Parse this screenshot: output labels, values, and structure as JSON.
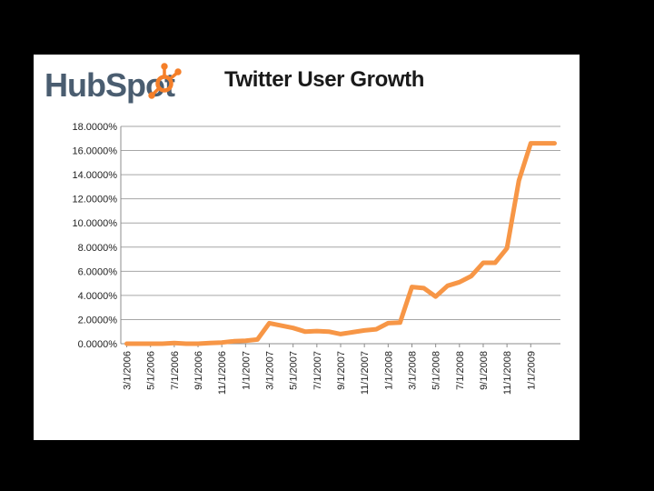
{
  "brand": {
    "logo_text": "HubSpot",
    "text_color": "#4a5d70",
    "accent_color": "#f57f29"
  },
  "chart_data": {
    "type": "line",
    "title": "Twitter User Growth",
    "xlabel": "",
    "ylabel": "",
    "ylim": [
      0,
      18
    ],
    "y_ticks": [
      0,
      2,
      4,
      6,
      8,
      10,
      12,
      14,
      16,
      18
    ],
    "y_tick_labels": [
      "0.0000%",
      "2.0000%",
      "4.0000%",
      "6.0000%",
      "8.0000%",
      "10.0000%",
      "12.0000%",
      "14.0000%",
      "16.0000%",
      "18.0000%"
    ],
    "x_tick_labels": [
      "3/1/2006",
      "5/1/2006",
      "7/1/2006",
      "9/1/2006",
      "11/1/2006",
      "1/1/2007",
      "3/1/2007",
      "5/1/2007",
      "7/1/2007",
      "9/1/2007",
      "11/1/2007",
      "1/1/2008",
      "3/1/2008",
      "5/1/2008",
      "7/1/2008",
      "9/1/2008",
      "11/1/2008",
      "1/1/2009"
    ],
    "grid": true,
    "line_color": "#f79646",
    "series": [
      {
        "x": [
          "3/1/2006",
          "4/1/2006",
          "5/1/2006",
          "6/1/2006",
          "7/1/2006",
          "8/1/2006",
          "9/1/2006",
          "10/1/2006",
          "11/1/2006",
          "12/1/2006",
          "1/1/2007",
          "2/1/2007",
          "3/1/2007",
          "4/1/2007",
          "5/1/2007",
          "6/1/2007",
          "7/1/2007",
          "8/1/2007",
          "9/1/2007",
          "10/1/2007",
          "11/1/2007",
          "12/1/2007",
          "1/1/2008",
          "2/1/2008",
          "3/1/2008",
          "4/1/2008",
          "5/1/2008",
          "6/1/2008",
          "7/1/2008",
          "8/1/2008",
          "9/1/2008",
          "10/1/2008",
          "11/1/2008",
          "12/1/2008",
          "1/1/2009",
          "2/1/2009",
          "3/1/2009"
        ],
        "values": [
          0.0,
          0.0,
          0.0,
          0.0,
          0.05,
          0.0,
          0.0,
          0.05,
          0.1,
          0.2,
          0.25,
          0.35,
          1.7,
          1.5,
          1.3,
          1.0,
          1.05,
          1.0,
          0.8,
          0.95,
          1.1,
          1.2,
          1.7,
          1.75,
          4.7,
          4.6,
          3.9,
          4.8,
          5.1,
          5.6,
          6.7,
          6.7,
          7.9,
          13.5,
          16.6,
          16.6,
          16.6
        ]
      }
    ]
  }
}
